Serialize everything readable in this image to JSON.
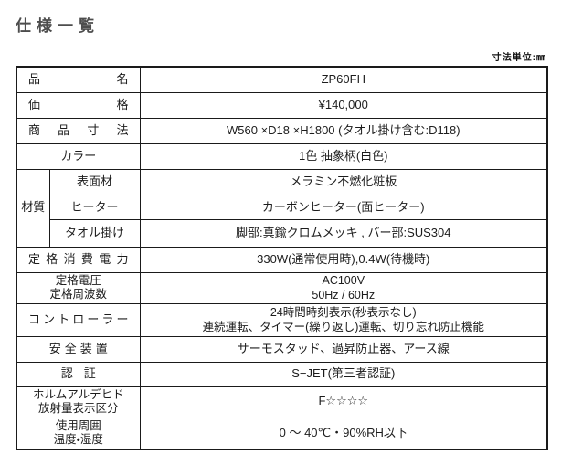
{
  "page": {
    "title": "仕様一覧",
    "unit_note": "寸法単位:㎜"
  },
  "table": {
    "material_group_label": "材質",
    "rows": [
      {
        "label": "品名",
        "value": "ZP60FH"
      },
      {
        "label": "価格",
        "value": "¥140,000"
      },
      {
        "label": "商品寸法",
        "value": "W560 ×D18 ×H1800 (タオル掛け含む:D118)"
      },
      {
        "label": "カラー",
        "value": "1色 抽象柄(白色)"
      },
      {
        "label": "表面材",
        "value": "メラミン不燃化粧板"
      },
      {
        "label": "ヒーター",
        "value": "カーボンヒーター(面ヒーター)"
      },
      {
        "label": "タオル掛け",
        "value": "脚部:真鍮クロムメッキ , バー部:SUS304"
      },
      {
        "label": "定格消費電力",
        "value": "330W(通常使用時),0.4W(待機時)"
      },
      {
        "label": "定格電圧\n定格周波数",
        "value": "AC100V\n50Hz / 60Hz"
      },
      {
        "label": "コントローラー",
        "value": "24時間時刻表示(秒表示なし)\n連続運転、タイマー(繰り返し)運転、切り忘れ防止機能"
      },
      {
        "label": "安全装置",
        "value": "サーモスタッド、過昇防止器、アース線"
      },
      {
        "label": "認証",
        "value": "S−JET(第三者認証)"
      },
      {
        "label": "ホルムアルデヒド\n放射量表示区分",
        "value": "F☆☆☆☆"
      },
      {
        "label": "使用周囲\n温度・湿度",
        "value": "0 〜 40℃・90%RH以下"
      }
    ],
    "colors": {
      "background": "#ffffff",
      "border": "#1a1a1a",
      "text": "#1c1c1c",
      "title_text": "#4d4d4d"
    }
  }
}
